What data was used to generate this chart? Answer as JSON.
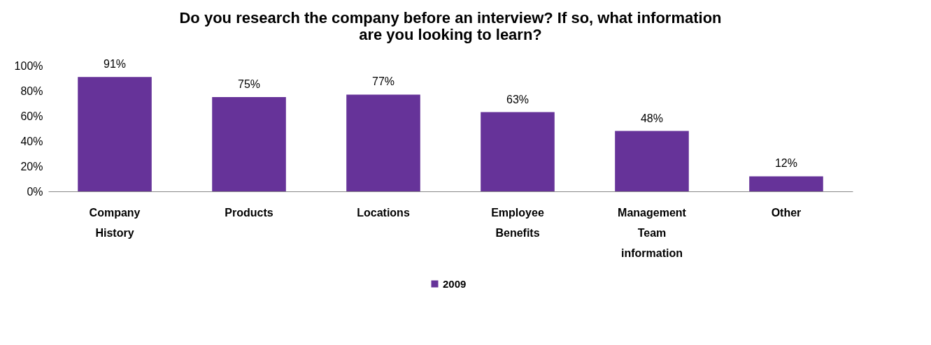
{
  "chart_data": {
    "type": "bar",
    "title": "Do you research the company before an interview? If so, what information are you looking to learn?",
    "categories": [
      "Company History",
      "Products",
      "Locations",
      "Employee Benefits",
      "Management Team information",
      "Other"
    ],
    "series": [
      {
        "name": "2009",
        "color": "#663399",
        "values": [
          91,
          75,
          77,
          63,
          48,
          12
        ],
        "value_labels": [
          "91%",
          "75%",
          "77%",
          "63%",
          "48%",
          "12%"
        ]
      }
    ],
    "ylim": [
      0,
      100
    ],
    "yticks": [
      {
        "value": 0,
        "label": "0%"
      },
      {
        "value": 20,
        "label": "20%"
      },
      {
        "value": 40,
        "label": "40%"
      },
      {
        "value": 60,
        "label": "60%"
      },
      {
        "value": 80,
        "label": "80%"
      },
      {
        "value": 100,
        "label": "100%"
      }
    ],
    "grid": false,
    "legend": "bottom"
  }
}
